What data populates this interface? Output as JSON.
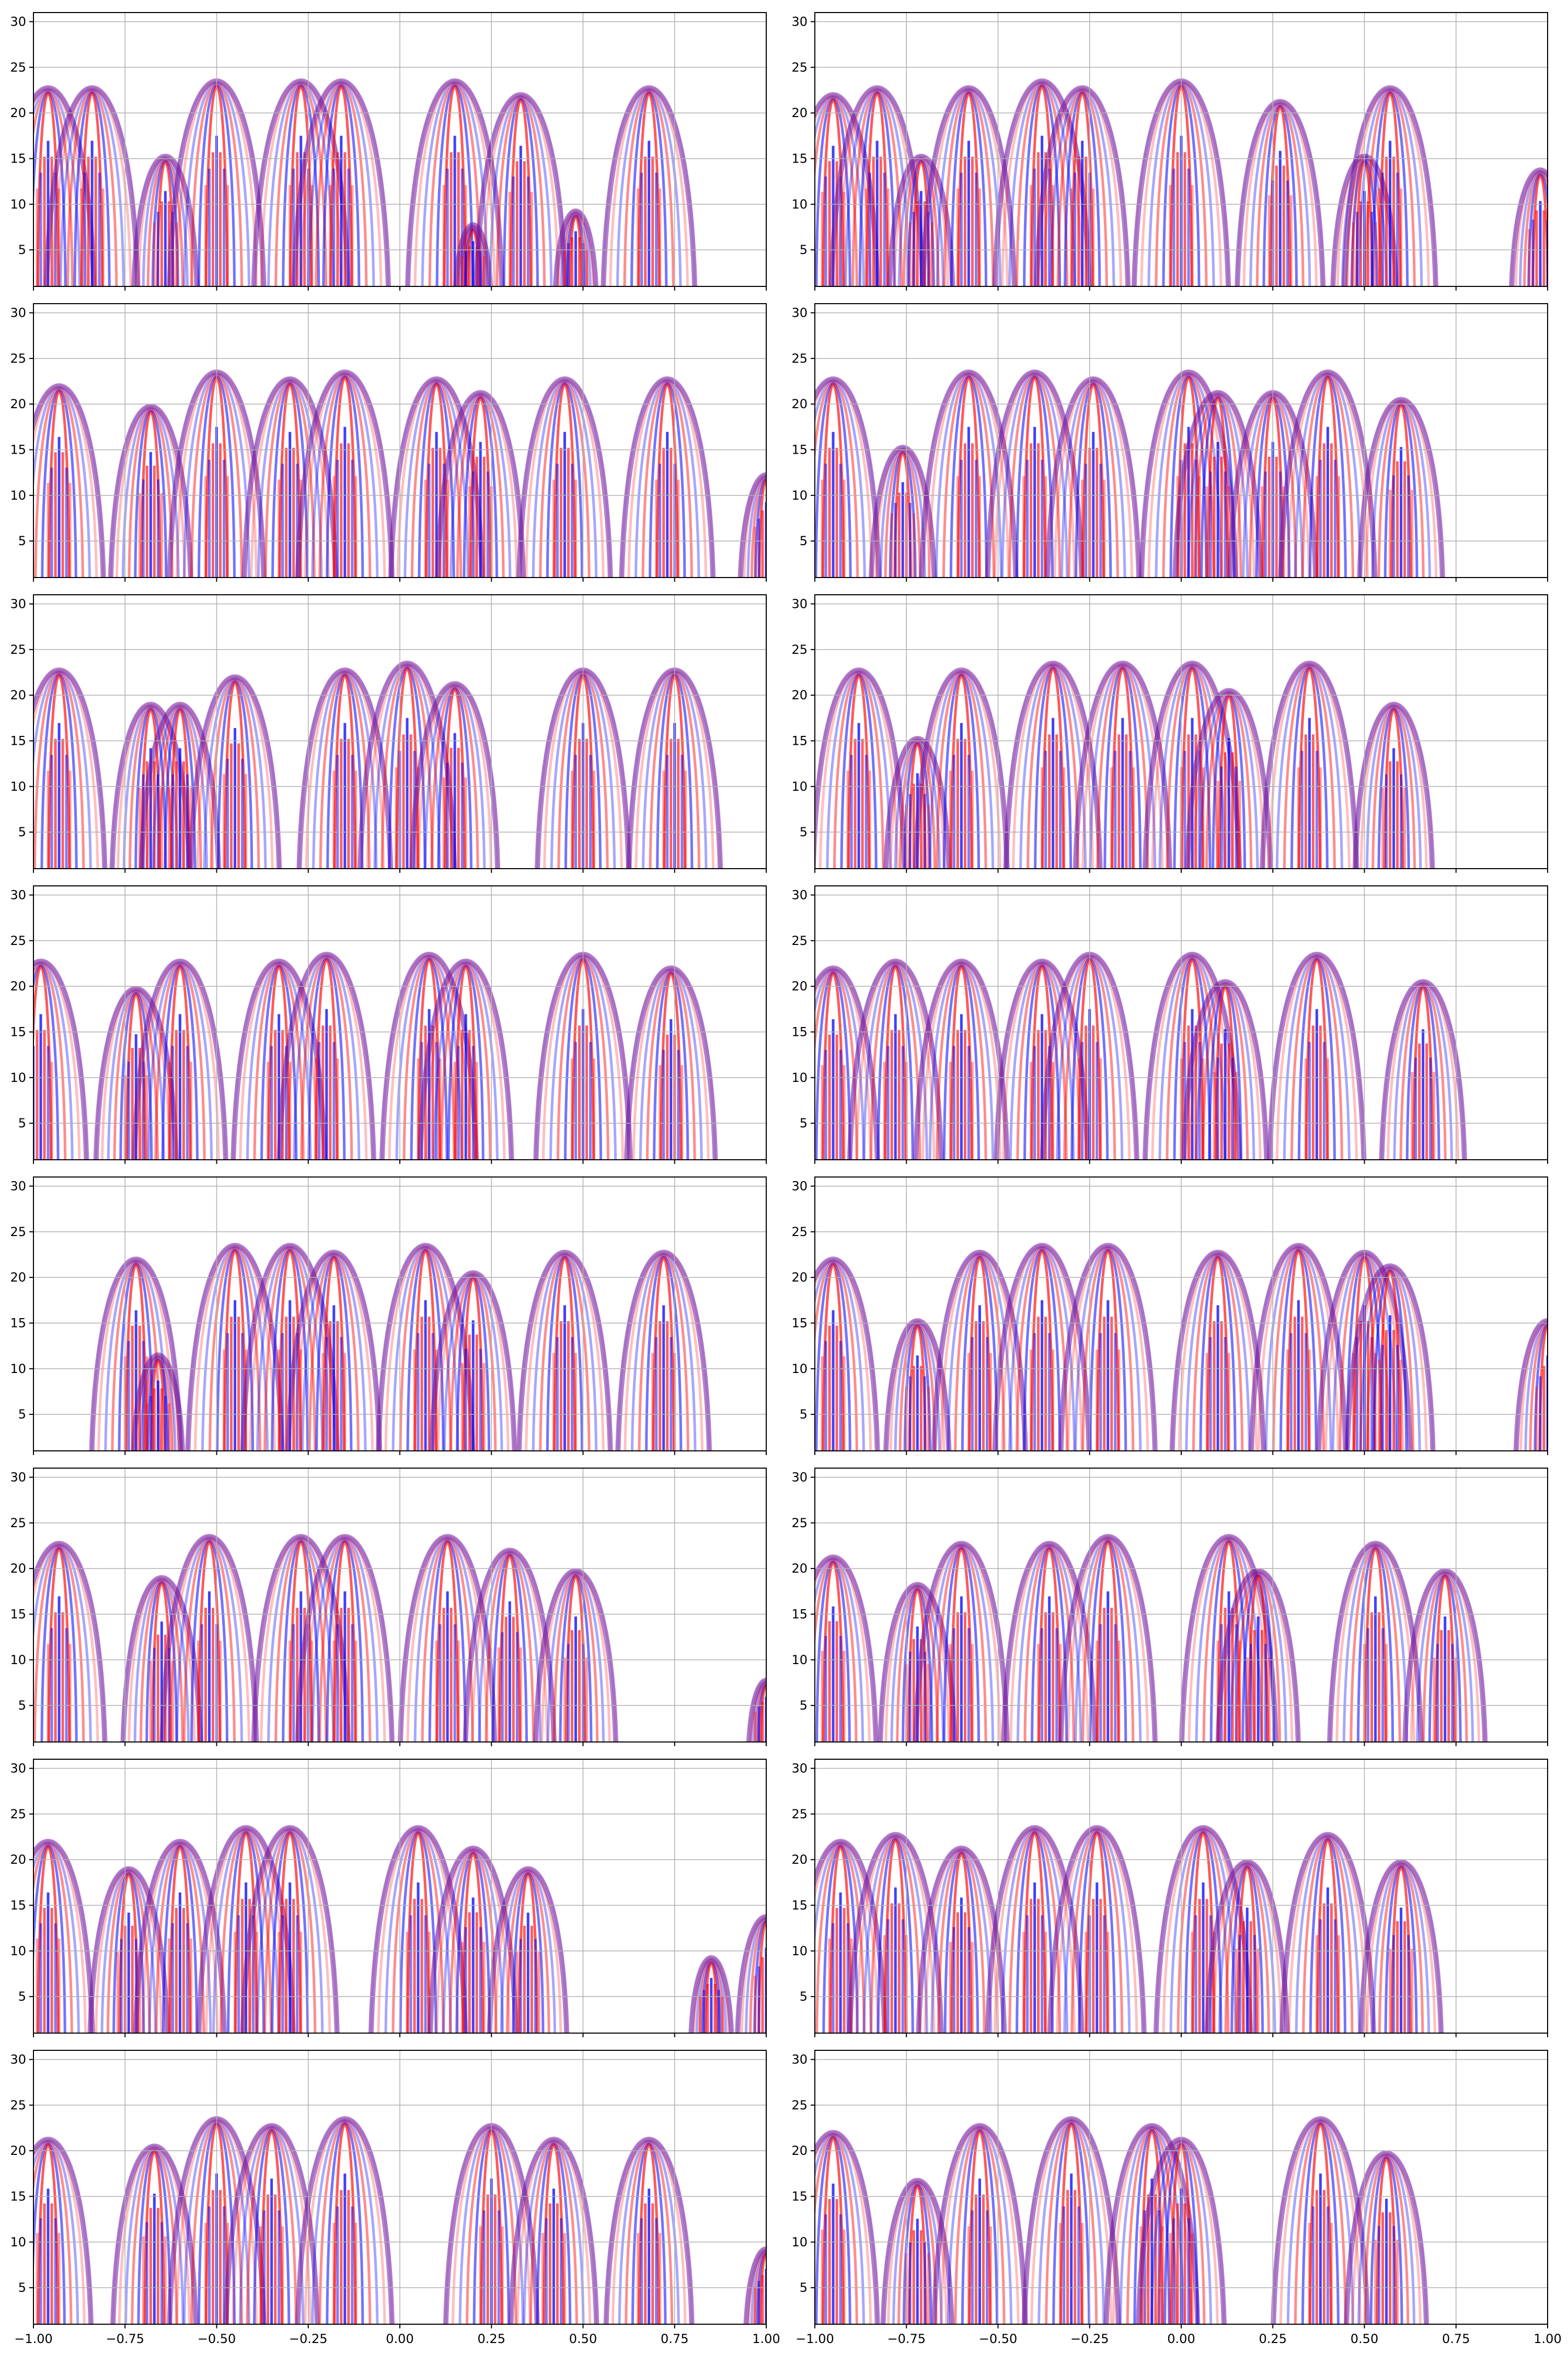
{
  "figure": {
    "rows": 8,
    "cols": 2,
    "sharex": true,
    "colormap": "bwr",
    "grid": true
  },
  "chart_data": {
    "type": "heatmap",
    "description_note": "",
    "xlim": [
      -1.0,
      1.0
    ],
    "ylim": [
      1,
      31
    ],
    "xticks": [
      -1.0,
      -0.75,
      -0.5,
      -0.25,
      0.0,
      0.25,
      0.5,
      0.75,
      1.0
    ],
    "xtick_labels": [
      "−1.00",
      "−0.75",
      "−0.50",
      "−0.25",
      "0.00",
      "0.25",
      "0.50",
      "0.75",
      "1.00"
    ],
    "yticks": [
      5,
      10,
      15,
      20,
      25,
      30
    ],
    "ytick_labels": [
      "5",
      "10",
      "15",
      "20",
      "25",
      "30"
    ],
    "colors": {
      "negative": "#0000ff",
      "positive": "#ff0000",
      "mid": "#ffffff",
      "overlap": "#7a1a9a"
    },
    "panels": [
      {
        "row": 0,
        "col": 0,
        "events": [
          [
            -0.96,
            30
          ],
          [
            -0.84,
            30
          ],
          [
            -0.64,
            20
          ],
          [
            -0.5,
            31
          ],
          [
            -0.27,
            31
          ],
          [
            -0.16,
            31
          ],
          [
            0.15,
            31
          ],
          [
            0.2,
            10
          ],
          [
            0.33,
            29
          ],
          [
            0.48,
            12
          ],
          [
            0.68,
            30
          ]
        ]
      },
      {
        "row": 0,
        "col": 1,
        "events": [
          [
            -0.95,
            29
          ],
          [
            -0.83,
            30
          ],
          [
            -0.71,
            20
          ],
          [
            -0.58,
            30
          ],
          [
            -0.38,
            31
          ],
          [
            -0.27,
            30
          ],
          [
            0.0,
            31
          ],
          [
            0.27,
            28
          ],
          [
            0.5,
            20
          ],
          [
            0.57,
            30
          ],
          [
            0.98,
            18
          ]
        ]
      },
      {
        "row": 1,
        "col": 0,
        "events": [
          [
            -0.93,
            29
          ],
          [
            -0.68,
            26
          ],
          [
            -0.5,
            31
          ],
          [
            -0.3,
            30
          ],
          [
            -0.15,
            31
          ],
          [
            0.1,
            30
          ],
          [
            0.22,
            28
          ],
          [
            0.45,
            30
          ],
          [
            0.73,
            30
          ],
          [
            1.0,
            16
          ]
        ]
      },
      {
        "row": 1,
        "col": 1,
        "events": [
          [
            -0.95,
            30
          ],
          [
            -0.76,
            20
          ],
          [
            -0.58,
            31
          ],
          [
            -0.4,
            31
          ],
          [
            -0.24,
            30
          ],
          [
            0.02,
            31
          ],
          [
            0.1,
            28
          ],
          [
            0.25,
            28
          ],
          [
            0.4,
            31
          ],
          [
            0.6,
            27
          ]
        ]
      },
      {
        "row": 2,
        "col": 0,
        "events": [
          [
            -0.93,
            30
          ],
          [
            -0.68,
            25
          ],
          [
            -0.6,
            25
          ],
          [
            -0.45,
            29
          ],
          [
            -0.15,
            30
          ],
          [
            0.02,
            31
          ],
          [
            0.15,
            28
          ],
          [
            0.5,
            30
          ],
          [
            0.75,
            30
          ]
        ]
      },
      {
        "row": 2,
        "col": 1,
        "events": [
          [
            -0.88,
            30
          ],
          [
            -0.72,
            20
          ],
          [
            -0.6,
            30
          ],
          [
            -0.35,
            31
          ],
          [
            -0.16,
            31
          ],
          [
            0.03,
            31
          ],
          [
            0.13,
            27
          ],
          [
            0.35,
            31
          ],
          [
            0.58,
            25
          ]
        ]
      },
      {
        "row": 3,
        "col": 0,
        "events": [
          [
            -0.98,
            30
          ],
          [
            -0.72,
            26
          ],
          [
            -0.6,
            30
          ],
          [
            -0.33,
            30
          ],
          [
            -0.2,
            31
          ],
          [
            0.08,
            31
          ],
          [
            0.18,
            30
          ],
          [
            0.5,
            31
          ],
          [
            0.74,
            29
          ]
        ]
      },
      {
        "row": 3,
        "col": 1,
        "events": [
          [
            -0.95,
            29
          ],
          [
            -0.78,
            30
          ],
          [
            -0.6,
            30
          ],
          [
            -0.38,
            30
          ],
          [
            -0.25,
            31
          ],
          [
            0.03,
            31
          ],
          [
            0.12,
            27
          ],
          [
            0.37,
            31
          ],
          [
            0.66,
            27
          ]
        ]
      },
      {
        "row": 4,
        "col": 0,
        "events": [
          [
            -0.72,
            29
          ],
          [
            -0.66,
            15
          ],
          [
            -0.45,
            31
          ],
          [
            -0.3,
            31
          ],
          [
            -0.18,
            30
          ],
          [
            0.07,
            31
          ],
          [
            0.2,
            27
          ],
          [
            0.45,
            30
          ],
          [
            0.72,
            30
          ]
        ]
      },
      {
        "row": 4,
        "col": 1,
        "events": [
          [
            -0.95,
            29
          ],
          [
            -0.72,
            20
          ],
          [
            -0.55,
            30
          ],
          [
            -0.38,
            31
          ],
          [
            -0.2,
            31
          ],
          [
            0.1,
            30
          ],
          [
            0.32,
            31
          ],
          [
            0.5,
            30
          ],
          [
            0.57,
            28
          ],
          [
            1.0,
            20
          ]
        ]
      },
      {
        "row": 5,
        "col": 0,
        "events": [
          [
            -0.93,
            30
          ],
          [
            -0.65,
            25
          ],
          [
            -0.52,
            31
          ],
          [
            -0.27,
            31
          ],
          [
            -0.15,
            31
          ],
          [
            0.13,
            31
          ],
          [
            0.3,
            29
          ],
          [
            0.48,
            26
          ],
          [
            1.0,
            10
          ]
        ]
      },
      {
        "row": 5,
        "col": 1,
        "events": [
          [
            -0.95,
            28
          ],
          [
            -0.72,
            24
          ],
          [
            -0.6,
            30
          ],
          [
            -0.36,
            30
          ],
          [
            -0.2,
            31
          ],
          [
            0.13,
            31
          ],
          [
            0.21,
            26
          ],
          [
            0.53,
            30
          ],
          [
            0.72,
            26
          ]
        ]
      },
      {
        "row": 6,
        "col": 0,
        "events": [
          [
            -0.96,
            29
          ],
          [
            -0.74,
            25
          ],
          [
            -0.6,
            29
          ],
          [
            -0.42,
            31
          ],
          [
            -0.3,
            31
          ],
          [
            0.05,
            31
          ],
          [
            0.2,
            28
          ],
          [
            0.35,
            25
          ],
          [
            0.85,
            12
          ],
          [
            1.0,
            18
          ]
        ]
      },
      {
        "row": 6,
        "col": 1,
        "events": [
          [
            -0.93,
            29
          ],
          [
            -0.78,
            30
          ],
          [
            -0.6,
            28
          ],
          [
            -0.4,
            31
          ],
          [
            -0.23,
            31
          ],
          [
            0.06,
            31
          ],
          [
            0.18,
            26
          ],
          [
            0.4,
            30
          ],
          [
            0.6,
            26
          ]
        ]
      },
      {
        "row": 7,
        "col": 0,
        "events": [
          [
            -0.96,
            28
          ],
          [
            -0.67,
            27
          ],
          [
            -0.5,
            31
          ],
          [
            -0.35,
            30
          ],
          [
            -0.15,
            31
          ],
          [
            0.25,
            30
          ],
          [
            0.42,
            28
          ],
          [
            0.68,
            28
          ],
          [
            1.0,
            12
          ]
        ]
      },
      {
        "row": 7,
        "col": 1,
        "events": [
          [
            -0.95,
            29
          ],
          [
            -0.72,
            22
          ],
          [
            -0.55,
            30
          ],
          [
            -0.3,
            31
          ],
          [
            -0.08,
            30
          ],
          [
            0.0,
            28
          ],
          [
            0.38,
            31
          ],
          [
            0.56,
            26
          ]
        ]
      }
    ]
  }
}
